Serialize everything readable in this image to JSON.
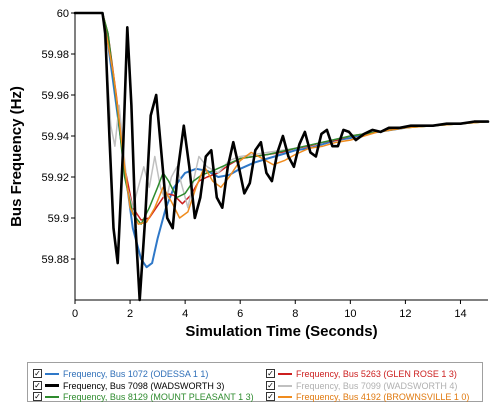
{
  "chart_data": {
    "type": "line",
    "title": "",
    "xlabel": "Simulation Time (Seconds)",
    "ylabel": "Bus Frequency (Hz)",
    "xlim": [
      0,
      15
    ],
    "ylim": [
      59.86,
      60
    ],
    "x_ticks": [
      "0",
      "2",
      "4",
      "6",
      "8",
      "10",
      "12",
      "14"
    ],
    "y_ticks": [
      "59.88",
      "59.9",
      "59.92",
      "59.94",
      "59.96",
      "59.98",
      "60"
    ],
    "grid": false,
    "legend_position": "bottom",
    "series": [
      {
        "name": "Frequency, Bus 1072 (ODESSA 1 1)",
        "color": "#2f78c8",
        "width": 2,
        "points": [
          [
            0,
            60
          ],
          [
            1,
            60
          ],
          [
            1.2,
            59.985
          ],
          [
            1.5,
            59.955
          ],
          [
            1.8,
            59.925
          ],
          [
            2.1,
            59.895
          ],
          [
            2.4,
            59.88
          ],
          [
            2.6,
            59.876
          ],
          [
            2.8,
            59.878
          ],
          [
            3.0,
            59.89
          ],
          [
            3.3,
            59.905
          ],
          [
            3.6,
            59.915
          ],
          [
            4.0,
            59.922
          ],
          [
            4.4,
            59.924
          ],
          [
            4.8,
            59.923
          ],
          [
            5.2,
            59.92
          ],
          [
            5.6,
            59.921
          ],
          [
            6.0,
            59.924
          ],
          [
            6.5,
            59.927
          ],
          [
            7,
            59.929
          ],
          [
            7.5,
            59.931
          ],
          [
            8,
            59.933
          ],
          [
            8.5,
            59.934
          ],
          [
            9,
            59.936
          ],
          [
            9.5,
            59.938
          ],
          [
            10,
            59.939
          ],
          [
            10.5,
            59.941
          ],
          [
            11,
            59.942
          ],
          [
            11.5,
            59.943
          ],
          [
            12,
            59.944
          ],
          [
            12.5,
            59.945
          ],
          [
            13,
            59.945
          ],
          [
            13.5,
            59.946
          ],
          [
            14,
            59.946
          ],
          [
            14.5,
            59.947
          ],
          [
            15,
            59.947
          ]
        ]
      },
      {
        "name": "Frequency, Bus 5263 (GLEN ROSE 1 3)",
        "color": "#cc1f1f",
        "width": 1.5,
        "points": [
          [
            0,
            60
          ],
          [
            1,
            60
          ],
          [
            1.2,
            59.99
          ],
          [
            1.5,
            59.96
          ],
          [
            1.8,
            59.925
          ],
          [
            2.1,
            59.905
          ],
          [
            2.4,
            59.899
          ],
          [
            2.7,
            59.9
          ],
          [
            3.0,
            59.906
          ],
          [
            3.3,
            59.912
          ],
          [
            3.6,
            59.911
          ],
          [
            3.9,
            59.907
          ],
          [
            4.2,
            59.911
          ],
          [
            4.5,
            59.918
          ],
          [
            4.8,
            59.92
          ],
          [
            5.2,
            59.922
          ],
          [
            5.6,
            59.926
          ],
          [
            6,
            59.929
          ],
          [
            6.5,
            59.93
          ],
          [
            7,
            59.931
          ],
          [
            7.5,
            59.932
          ],
          [
            8,
            59.934
          ],
          [
            8.5,
            59.935
          ],
          [
            9,
            59.937
          ],
          [
            9.5,
            59.938
          ],
          [
            10,
            59.94
          ],
          [
            10.5,
            59.941
          ],
          [
            11,
            59.942
          ],
          [
            11.5,
            59.943
          ],
          [
            12,
            59.944
          ],
          [
            12.5,
            59.945
          ],
          [
            13,
            59.945
          ],
          [
            13.5,
            59.946
          ],
          [
            14,
            59.946
          ],
          [
            14.5,
            59.947
          ],
          [
            15,
            59.947
          ]
        ]
      },
      {
        "name": "Frequency, Bus 7099 (WADSWORTH 4)",
        "color": "#c0c0c0",
        "width": 1.5,
        "points": [
          [
            0,
            60
          ],
          [
            1,
            60
          ],
          [
            1.15,
            59.975
          ],
          [
            1.3,
            59.945
          ],
          [
            1.45,
            59.935
          ],
          [
            1.6,
            59.955
          ],
          [
            1.75,
            59.935
          ],
          [
            1.9,
            59.915
          ],
          [
            2.1,
            59.905
          ],
          [
            2.3,
            59.915
          ],
          [
            2.5,
            59.925
          ],
          [
            2.7,
            59.915
          ],
          [
            2.9,
            59.93
          ],
          [
            3.1,
            59.915
          ],
          [
            3.3,
            59.908
          ],
          [
            3.5,
            59.92
          ],
          [
            3.7,
            59.925
          ],
          [
            3.9,
            59.915
          ],
          [
            4.1,
            59.905
          ],
          [
            4.3,
            59.918
          ],
          [
            4.5,
            59.93
          ],
          [
            4.8,
            59.925
          ],
          [
            5.2,
            59.922
          ],
          [
            5.6,
            59.928
          ],
          [
            6,
            59.93
          ],
          [
            6.5,
            59.931
          ],
          [
            7,
            59.932
          ],
          [
            8,
            59.934
          ],
          [
            9,
            59.937
          ],
          [
            10,
            59.94
          ],
          [
            11,
            59.942
          ],
          [
            12,
            59.944
          ],
          [
            13,
            59.945
          ],
          [
            14,
            59.946
          ],
          [
            15,
            59.947
          ]
        ]
      },
      {
        "name": "Frequency, Bus 8129 (MOUNT PLEASANT 1 3)",
        "color": "#2e8b2e",
        "width": 1.5,
        "points": [
          [
            0,
            60
          ],
          [
            1,
            60
          ],
          [
            1.2,
            59.99
          ],
          [
            1.5,
            59.958
          ],
          [
            1.8,
            59.92
          ],
          [
            2.1,
            59.902
          ],
          [
            2.4,
            59.897
          ],
          [
            2.7,
            59.905
          ],
          [
            3.0,
            59.915
          ],
          [
            3.2,
            59.922
          ],
          [
            3.4,
            59.918
          ],
          [
            3.7,
            59.91
          ],
          [
            4.0,
            59.912
          ],
          [
            4.3,
            59.918
          ],
          [
            4.6,
            59.921
          ],
          [
            5,
            59.923
          ],
          [
            5.5,
            59.926
          ],
          [
            6,
            59.929
          ],
          [
            6.5,
            59.93
          ],
          [
            7,
            59.931
          ],
          [
            8,
            59.934
          ],
          [
            9,
            59.937
          ],
          [
            10,
            59.94
          ],
          [
            11,
            59.942
          ],
          [
            12,
            59.944
          ],
          [
            13,
            59.945
          ],
          [
            14,
            59.946
          ],
          [
            15,
            59.947
          ]
        ]
      },
      {
        "name": "Frequency, Bus 4192 (BROWNSVILLE 1 0)",
        "color": "#f08c1e",
        "width": 1.5,
        "points": [
          [
            0,
            60
          ],
          [
            1,
            60
          ],
          [
            1.2,
            59.985
          ],
          [
            1.4,
            59.97
          ],
          [
            1.6,
            59.948
          ],
          [
            1.8,
            59.925
          ],
          [
            2.0,
            59.905
          ],
          [
            2.3,
            59.897
          ],
          [
            2.6,
            59.898
          ],
          [
            2.9,
            59.905
          ],
          [
            3.2,
            59.915
          ],
          [
            3.5,
            59.908
          ],
          [
            3.8,
            59.9
          ],
          [
            4.1,
            59.903
          ],
          [
            4.4,
            59.915
          ],
          [
            4.7,
            59.925
          ],
          [
            5.0,
            59.918
          ],
          [
            5.3,
            59.915
          ],
          [
            5.6,
            59.92
          ],
          [
            6.0,
            59.928
          ],
          [
            6.4,
            59.932
          ],
          [
            6.8,
            59.929
          ],
          [
            7.2,
            59.926
          ],
          [
            7.6,
            59.928
          ],
          [
            8,
            59.931
          ],
          [
            8.5,
            59.934
          ],
          [
            9,
            59.935
          ],
          [
            9.5,
            59.937
          ],
          [
            10,
            59.938
          ],
          [
            10.5,
            59.94
          ],
          [
            11,
            59.942
          ],
          [
            11.5,
            59.943
          ],
          [
            12,
            59.944
          ],
          [
            13,
            59.945
          ],
          [
            14,
            59.946
          ],
          [
            15,
            59.947
          ]
        ]
      },
      {
        "name": "Frequency, Bus 7098 (WADSWORTH 3)",
        "color": "#000000",
        "width": 2.6,
        "points": [
          [
            0,
            60
          ],
          [
            1,
            60
          ],
          [
            1.1,
            59.99
          ],
          [
            1.25,
            59.94
          ],
          [
            1.4,
            59.895
          ],
          [
            1.55,
            59.878
          ],
          [
            1.75,
            59.935
          ],
          [
            1.9,
            59.993
          ],
          [
            2.05,
            59.955
          ],
          [
            2.2,
            59.895
          ],
          [
            2.35,
            59.86
          ],
          [
            2.55,
            59.9
          ],
          [
            2.75,
            59.95
          ],
          [
            2.95,
            59.96
          ],
          [
            3.15,
            59.93
          ],
          [
            3.35,
            59.9
          ],
          [
            3.55,
            59.895
          ],
          [
            3.75,
            59.925
          ],
          [
            3.95,
            59.945
          ],
          [
            4.15,
            59.925
          ],
          [
            4.35,
            59.9
          ],
          [
            4.55,
            59.91
          ],
          [
            4.75,
            59.93
          ],
          [
            4.95,
            59.933
          ],
          [
            5.15,
            59.91
          ],
          [
            5.35,
            59.905
          ],
          [
            5.55,
            59.925
          ],
          [
            5.75,
            59.937
          ],
          [
            5.95,
            59.925
          ],
          [
            6.15,
            59.912
          ],
          [
            6.35,
            59.917
          ],
          [
            6.55,
            59.933
          ],
          [
            6.75,
            59.937
          ],
          [
            6.95,
            59.922
          ],
          [
            7.15,
            59.918
          ],
          [
            7.35,
            59.932
          ],
          [
            7.55,
            59.94
          ],
          [
            7.75,
            59.93
          ],
          [
            7.95,
            59.925
          ],
          [
            8.15,
            59.936
          ],
          [
            8.35,
            59.942
          ],
          [
            8.55,
            59.932
          ],
          [
            8.75,
            59.93
          ],
          [
            8.95,
            59.941
          ],
          [
            9.15,
            59.943
          ],
          [
            9.35,
            59.935
          ],
          [
            9.55,
            59.935
          ],
          [
            9.75,
            59.943
          ],
          [
            9.95,
            59.942
          ],
          [
            10.2,
            59.938
          ],
          [
            10.5,
            59.941
          ],
          [
            10.8,
            59.943
          ],
          [
            11.1,
            59.942
          ],
          [
            11.4,
            59.944
          ],
          [
            11.8,
            59.944
          ],
          [
            12.2,
            59.945
          ],
          [
            12.6,
            59.945
          ],
          [
            13,
            59.945
          ],
          [
            13.5,
            59.946
          ],
          [
            14,
            59.946
          ],
          [
            14.5,
            59.947
          ],
          [
            15,
            59.947
          ]
        ]
      }
    ]
  },
  "legend": [
    {
      "label": "Frequency, Bus 1072 (ODESSA 1 1)",
      "color": "#2f78c8",
      "text_color": "#2f6fb8",
      "line_width": 2
    },
    {
      "label": "Frequency, Bus 5263 (GLEN ROSE 1 3)",
      "color": "#cc1f1f",
      "text_color": "#cc1f1f",
      "line_width": 2
    },
    {
      "label": "Frequency, Bus 7098 (WADSWORTH 3)",
      "color": "#000000",
      "text_color": "#000000",
      "line_width": 3
    },
    {
      "label": "Frequency, Bus 7099 (WADSWORTH 4)",
      "color": "#c0c0c0",
      "text_color": "#b0b0b0",
      "line_width": 2
    },
    {
      "label": "Frequency, Bus 8129 (MOUNT PLEASANT 1 3)",
      "color": "#2e8b2e",
      "text_color": "#2e8b2e",
      "line_width": 2
    },
    {
      "label": "Frequency, Bus 4192 (BROWNSVILLE 1 0)",
      "color": "#f08c1e",
      "text_color": "#e07a10",
      "line_width": 2
    }
  ],
  "legend_check_mark": "✓"
}
